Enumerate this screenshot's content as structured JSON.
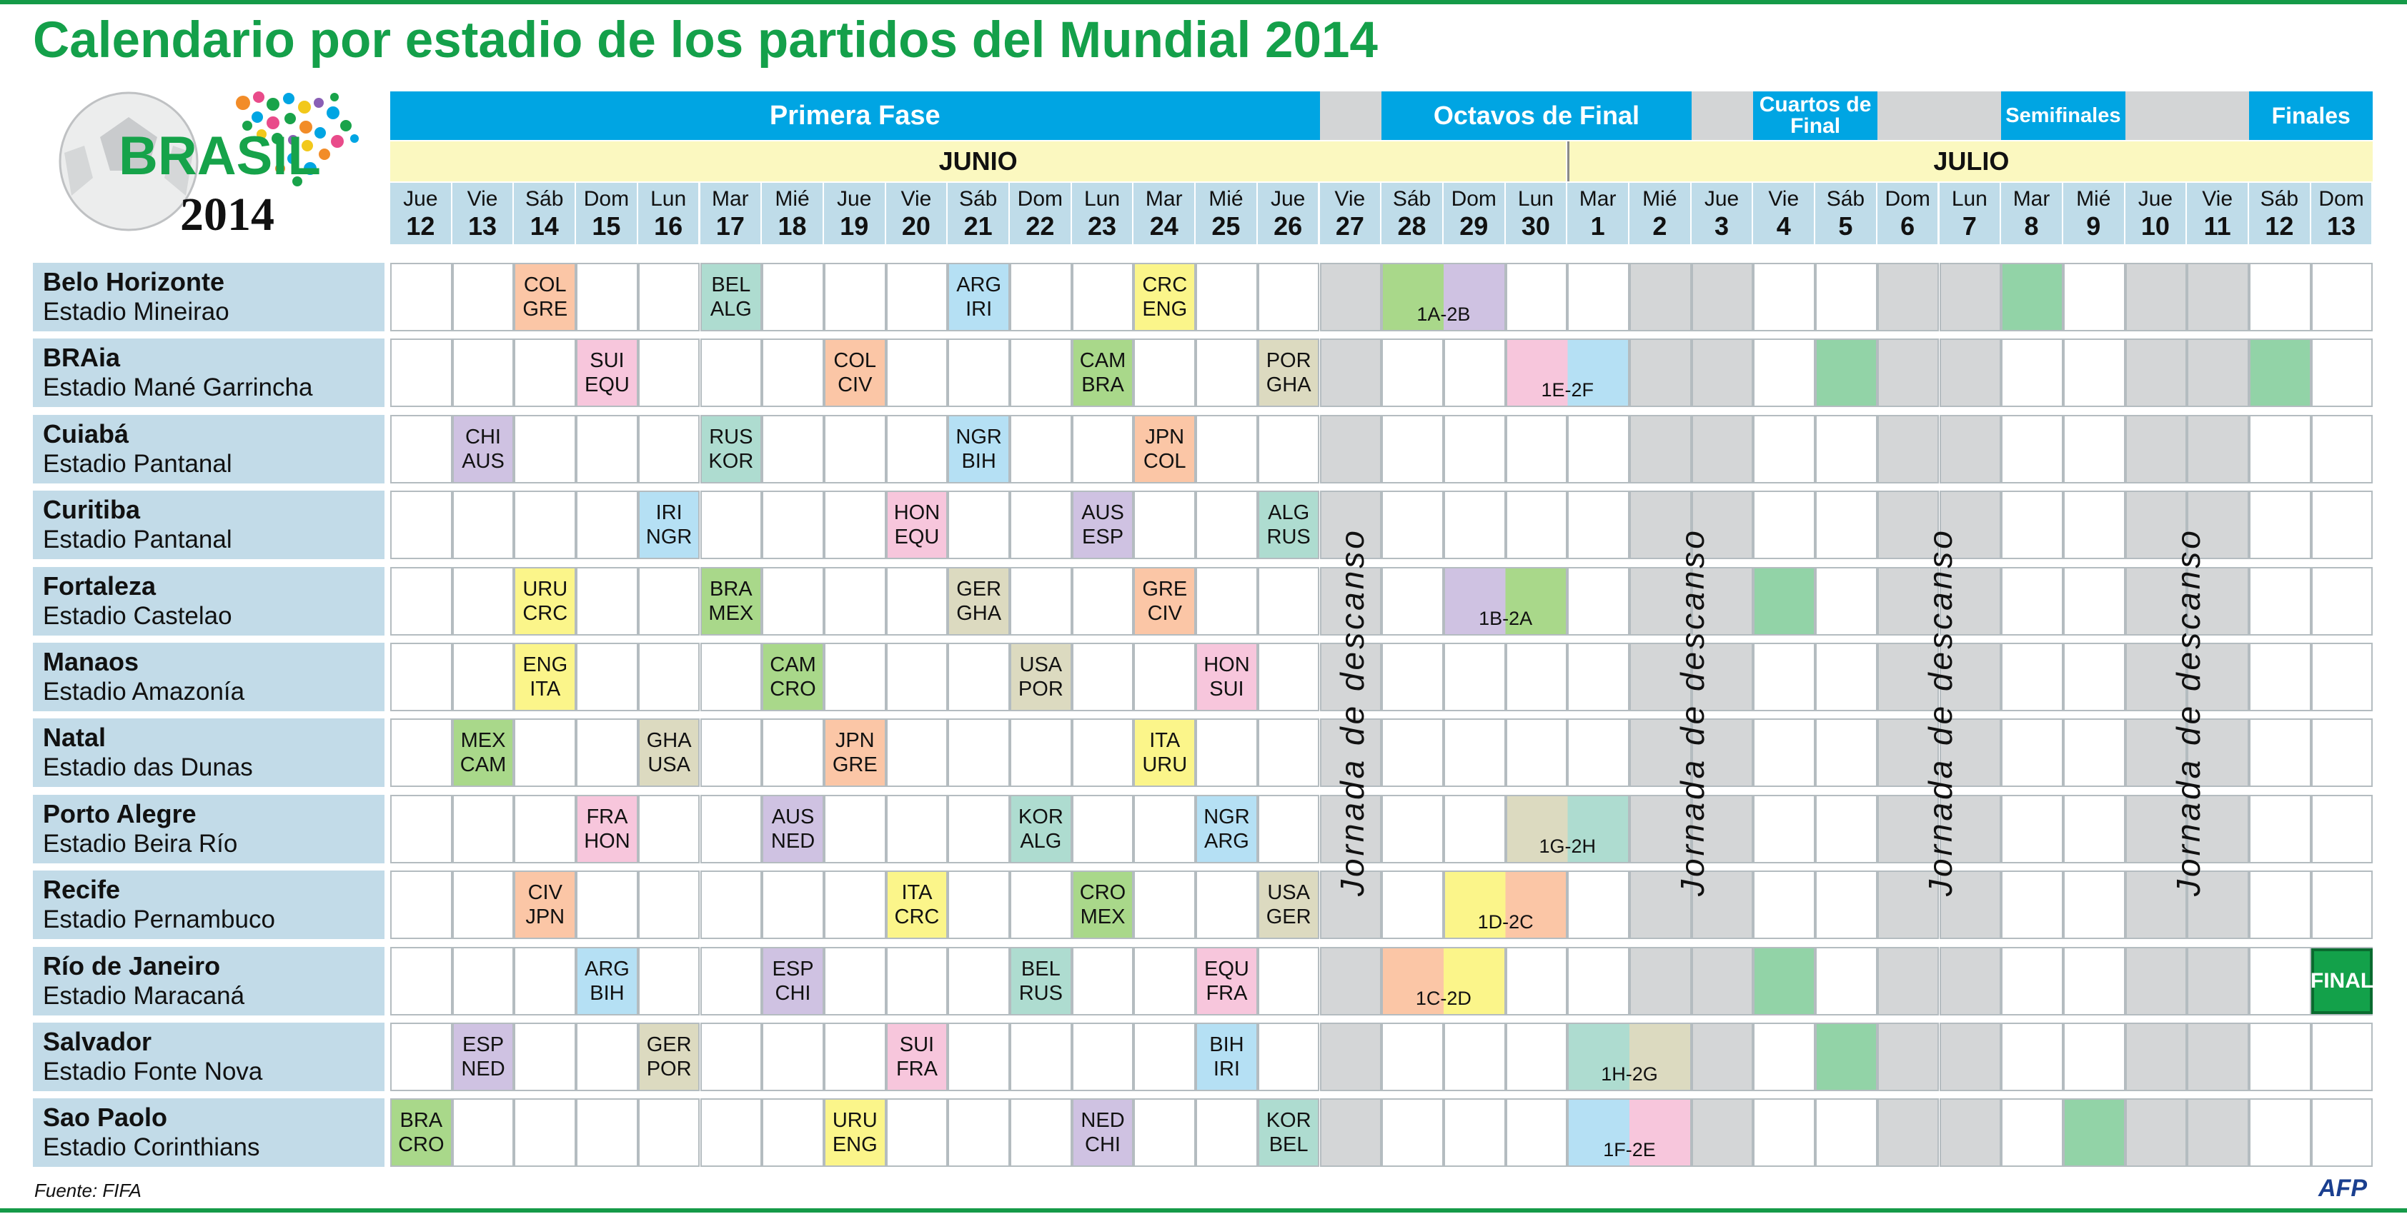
{
  "title": "Calendario por estadio de los partidos del Mundial 2014",
  "logo": {
    "word": "BRASIL",
    "year": "2014"
  },
  "phases": [
    "Primera Fase",
    "Octavos de Final",
    "Cuartos de Final",
    "Semifinales",
    "Finales"
  ],
  "months": [
    "JUNIO",
    "JULIO"
  ],
  "days": [
    {
      "n": "Jue",
      "d": "12"
    },
    {
      "n": "Vie",
      "d": "13"
    },
    {
      "n": "Sáb",
      "d": "14"
    },
    {
      "n": "Dom",
      "d": "15"
    },
    {
      "n": "Lun",
      "d": "16"
    },
    {
      "n": "Mar",
      "d": "17"
    },
    {
      "n": "Mié",
      "d": "18"
    },
    {
      "n": "Jue",
      "d": "19"
    },
    {
      "n": "Vie",
      "d": "20"
    },
    {
      "n": "Sáb",
      "d": "21"
    },
    {
      "n": "Dom",
      "d": "22"
    },
    {
      "n": "Lun",
      "d": "23"
    },
    {
      "n": "Mar",
      "d": "24"
    },
    {
      "n": "Mié",
      "d": "25"
    },
    {
      "n": "Jue",
      "d": "26"
    },
    {
      "n": "Vie",
      "d": "27"
    },
    {
      "n": "Sáb",
      "d": "28"
    },
    {
      "n": "Dom",
      "d": "29"
    },
    {
      "n": "Lun",
      "d": "30"
    },
    {
      "n": "Mar",
      "d": "1"
    },
    {
      "n": "Mié",
      "d": "2"
    },
    {
      "n": "Jue",
      "d": "3"
    },
    {
      "n": "Vie",
      "d": "4"
    },
    {
      "n": "Sáb",
      "d": "5"
    },
    {
      "n": "Dom",
      "d": "6"
    },
    {
      "n": "Lun",
      "d": "7"
    },
    {
      "n": "Mar",
      "d": "8"
    },
    {
      "n": "Mié",
      "d": "9"
    },
    {
      "n": "Jue",
      "d": "10"
    },
    {
      "n": "Vie",
      "d": "11"
    },
    {
      "n": "Sáb",
      "d": "12"
    },
    {
      "n": "Dom",
      "d": "13"
    }
  ],
  "rest_day_label": "Jornada de descanso",
  "group_colors": {
    "A": "#a9d88a",
    "B": "#aedcd0",
    "C": "#fbc6a6",
    "D": "#fbf58a",
    "E": "#f7c6dc",
    "F": "#b5e0f4",
    "G": "#dcdac0",
    "H": "#cfc2e2"
  },
  "knockout_color": "#92d3a7",
  "venues": [
    {
      "city": "Belo Horizonte",
      "stadium": "Estadio Mineirao",
      "matches": [
        {
          "day": 2,
          "teams": [
            "COL",
            "GRE"
          ],
          "group": "C"
        },
        {
          "day": 5,
          "teams": [
            "BEL",
            "ALG"
          ],
          "group": "B"
        },
        {
          "day": 9,
          "teams": [
            "ARG",
            "IRI"
          ],
          "group": "F"
        },
        {
          "day": 12,
          "teams": [
            "CRC",
            "ENG"
          ],
          "group": "D"
        }
      ],
      "slot": {
        "day": 16,
        "label": "1A-2B",
        "groups": [
          "A",
          "H"
        ]
      },
      "knockout_days": [
        26
      ]
    },
    {
      "city": "BRAia",
      "stadium": "Estadio Mané Garrincha",
      "matches": [
        {
          "day": 3,
          "teams": [
            "SUI",
            "EQU"
          ],
          "group": "E"
        },
        {
          "day": 7,
          "teams": [
            "COL",
            "CIV"
          ],
          "group": "C"
        },
        {
          "day": 11,
          "teams": [
            "CAM",
            "BRA"
          ],
          "group": "A"
        },
        {
          "day": 14,
          "teams": [
            "POR",
            "GHA"
          ],
          "group": "G"
        }
      ],
      "slot": {
        "day": 18,
        "label": "1E-2F",
        "groups": [
          "E",
          "F"
        ]
      },
      "knockout_days": [
        23,
        30
      ]
    },
    {
      "city": "Cuiabá",
      "stadium": "Estadio Pantanal",
      "matches": [
        {
          "day": 1,
          "teams": [
            "CHI",
            "AUS"
          ],
          "group": "H"
        },
        {
          "day": 5,
          "teams": [
            "RUS",
            "KOR"
          ],
          "group": "B"
        },
        {
          "day": 9,
          "teams": [
            "NGR",
            "BIH"
          ],
          "group": "F"
        },
        {
          "day": 12,
          "teams": [
            "JPN",
            "COL"
          ],
          "group": "C"
        }
      ],
      "slot": null,
      "knockout_days": []
    },
    {
      "city": "Curitiba",
      "stadium": "Estadio Pantanal",
      "matches": [
        {
          "day": 4,
          "teams": [
            "IRI",
            "NGR"
          ],
          "group": "F"
        },
        {
          "day": 8,
          "teams": [
            "HON",
            "EQU"
          ],
          "group": "E"
        },
        {
          "day": 11,
          "teams": [
            "AUS",
            "ESP"
          ],
          "group": "H"
        },
        {
          "day": 14,
          "teams": [
            "ALG",
            "RUS"
          ],
          "group": "B"
        }
      ],
      "slot": null,
      "knockout_days": []
    },
    {
      "city": "Fortaleza",
      "stadium": "Estadio Castelao",
      "matches": [
        {
          "day": 2,
          "teams": [
            "URU",
            "CRC"
          ],
          "group": "D"
        },
        {
          "day": 5,
          "teams": [
            "BRA",
            "MEX"
          ],
          "group": "A"
        },
        {
          "day": 9,
          "teams": [
            "GER",
            "GHA"
          ],
          "group": "G"
        },
        {
          "day": 12,
          "teams": [
            "GRE",
            "CIV"
          ],
          "group": "C"
        }
      ],
      "slot": {
        "day": 17,
        "label": "1B-2A",
        "groups": [
          "H",
          "A"
        ]
      },
      "knockout_days": [
        22
      ]
    },
    {
      "city": "Manaos",
      "stadium": "Estadio Amazonía",
      "matches": [
        {
          "day": 2,
          "teams": [
            "ENG",
            "ITA"
          ],
          "group": "D"
        },
        {
          "day": 6,
          "teams": [
            "CAM",
            "CRO"
          ],
          "group": "A"
        },
        {
          "day": 10,
          "teams": [
            "USA",
            "POR"
          ],
          "group": "G"
        },
        {
          "day": 13,
          "teams": [
            "HON",
            "SUI"
          ],
          "group": "E"
        }
      ],
      "slot": null,
      "knockout_days": []
    },
    {
      "city": "Natal",
      "stadium": "Estadio das Dunas",
      "matches": [
        {
          "day": 1,
          "teams": [
            "MEX",
            "CAM"
          ],
          "group": "A"
        },
        {
          "day": 4,
          "teams": [
            "GHA",
            "USA"
          ],
          "group": "G"
        },
        {
          "day": 7,
          "teams": [
            "JPN",
            "GRE"
          ],
          "group": "C"
        },
        {
          "day": 12,
          "teams": [
            "ITA",
            "URU"
          ],
          "group": "D"
        }
      ],
      "slot": null,
      "knockout_days": []
    },
    {
      "city": "Porto Alegre",
      "stadium": "Estadio Beira Río",
      "matches": [
        {
          "day": 3,
          "teams": [
            "FRA",
            "HON"
          ],
          "group": "E"
        },
        {
          "day": 6,
          "teams": [
            "AUS",
            "NED"
          ],
          "group": "H"
        },
        {
          "day": 10,
          "teams": [
            "KOR",
            "ALG"
          ],
          "group": "B"
        },
        {
          "day": 13,
          "teams": [
            "NGR",
            "ARG"
          ],
          "group": "F"
        }
      ],
      "slot": {
        "day": 18,
        "label": "1G-2H",
        "groups": [
          "G",
          "B"
        ]
      },
      "knockout_days": []
    },
    {
      "city": "Recife",
      "stadium": "Estadio Pernambuco",
      "matches": [
        {
          "day": 2,
          "teams": [
            "CIV",
            "JPN"
          ],
          "group": "C"
        },
        {
          "day": 8,
          "teams": [
            "ITA",
            "CRC"
          ],
          "group": "D"
        },
        {
          "day": 11,
          "teams": [
            "CRO",
            "MEX"
          ],
          "group": "A"
        },
        {
          "day": 14,
          "teams": [
            "USA",
            "GER"
          ],
          "group": "G"
        }
      ],
      "slot": {
        "day": 17,
        "label": "1D-2C",
        "groups": [
          "D",
          "C"
        ]
      },
      "knockout_days": []
    },
    {
      "city": "Río de Janeiro",
      "stadium": "Estadio Maracaná",
      "matches": [
        {
          "day": 3,
          "teams": [
            "ARG",
            "BIH"
          ],
          "group": "F"
        },
        {
          "day": 6,
          "teams": [
            "ESP",
            "CHI"
          ],
          "group": "H"
        },
        {
          "day": 10,
          "teams": [
            "BEL",
            "RUS"
          ],
          "group": "B"
        },
        {
          "day": 13,
          "teams": [
            "EQU",
            "FRA"
          ],
          "group": "E"
        }
      ],
      "slot": {
        "day": 16,
        "label": "1C-2D",
        "groups": [
          "C",
          "D"
        ]
      },
      "knockout_days": [
        22
      ],
      "final": {
        "day": 31,
        "label": "FINAL"
      }
    },
    {
      "city": "Salvador",
      "stadium": "Estadio Fonte Nova",
      "matches": [
        {
          "day": 1,
          "teams": [
            "ESP",
            "NED"
          ],
          "group": "H"
        },
        {
          "day": 4,
          "teams": [
            "GER",
            "POR"
          ],
          "group": "G"
        },
        {
          "day": 8,
          "teams": [
            "SUI",
            "FRA"
          ],
          "group": "E"
        },
        {
          "day": 13,
          "teams": [
            "BIH",
            "IRI"
          ],
          "group": "F"
        }
      ],
      "slot": {
        "day": 19,
        "label": "1H-2G",
        "groups": [
          "B",
          "G"
        ]
      },
      "knockout_days": [
        23
      ]
    },
    {
      "city": "Sao Paolo",
      "stadium": "Estadio Corinthians",
      "matches": [
        {
          "day": 0,
          "teams": [
            "BRA",
            "CRO"
          ],
          "group": "A"
        },
        {
          "day": 7,
          "teams": [
            "URU",
            "ENG"
          ],
          "group": "D"
        },
        {
          "day": 11,
          "teams": [
            "NED",
            "CHI"
          ],
          "group": "H"
        },
        {
          "day": 14,
          "teams": [
            "KOR",
            "BEL"
          ],
          "group": "B"
        }
      ],
      "slot": {
        "day": 19,
        "label": "1F-2E",
        "groups": [
          "F",
          "E"
        ]
      },
      "knockout_days": [
        27
      ]
    }
  ],
  "source": "Fuente: FIFA",
  "agency": "AFP"
}
